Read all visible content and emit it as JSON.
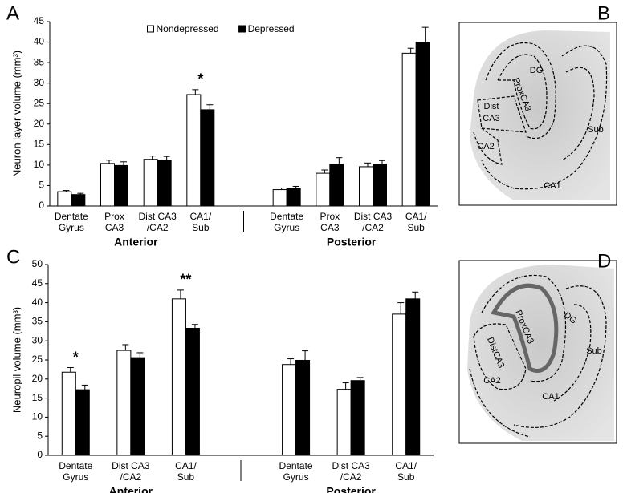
{
  "chart_data": [
    {
      "type": "bar",
      "panel_label": "A",
      "y_label": "Neuron layer volume (mm³)",
      "categories": [
        [
          "Dentate",
          "Gyrus"
        ],
        [
          "Prox",
          "CA3"
        ],
        [
          "Dist CA3",
          "/CA2"
        ],
        [
          "CA1/",
          "Sub"
        ],
        null,
        [
          "Dentate",
          "Gyrus"
        ],
        [
          "Prox",
          "CA3"
        ],
        [
          "Dist CA3",
          "/CA2"
        ],
        [
          "CA1/",
          "Sub"
        ]
      ],
      "group_labels": [
        "Anterior",
        "Posterior"
      ],
      "series": [
        {
          "name": "Nondepressed",
          "color": "#ffffff",
          "values": [
            3.5,
            10.4,
            11.4,
            27.2,
            null,
            4.0,
            8.0,
            9.6,
            37.3
          ],
          "errors": [
            0.3,
            0.8,
            0.8,
            1.2,
            null,
            0.4,
            0.8,
            0.9,
            1.2
          ]
        },
        {
          "name": "Depressed",
          "color": "#000000",
          "values": [
            2.8,
            9.9,
            11.2,
            23.5,
            null,
            4.3,
            10.2,
            10.2,
            40.0
          ],
          "errors": [
            0.3,
            0.9,
            0.9,
            1.2,
            null,
            0.5,
            1.6,
            0.9,
            3.6
          ]
        }
      ],
      "significance": [
        null,
        null,
        null,
        "*",
        null,
        null,
        null,
        null,
        null
      ],
      "ylim": [
        0,
        45
      ],
      "yticks": [
        0,
        5,
        10,
        15,
        20,
        25,
        30,
        35,
        40,
        45
      ],
      "legend": "top"
    },
    {
      "type": "bar",
      "panel_label": "C",
      "y_label": "Neuropil volume (mm³)",
      "categories": [
        [
          "Dentate",
          "Gyrus"
        ],
        [
          "Dist CA3",
          "/CA2"
        ],
        [
          "CA1/",
          "Sub"
        ],
        null,
        [
          "Dentate",
          "Gyrus"
        ],
        [
          "Dist CA3",
          "/CA2"
        ],
        [
          "CA1/",
          "Sub"
        ]
      ],
      "group_labels": [
        "Anterior",
        "Posterior"
      ],
      "series": [
        {
          "color": "#ffffff",
          "values": [
            21.8,
            27.5,
            41.0,
            null,
            23.8,
            17.3,
            37.0
          ],
          "errors": [
            1.2,
            1.5,
            2.3,
            null,
            1.5,
            1.7,
            3.0
          ]
        },
        {
          "color": "#000000",
          "values": [
            17.2,
            25.6,
            33.3,
            null,
            24.9,
            19.6,
            41.0
          ],
          "errors": [
            1.2,
            1.3,
            1.0,
            null,
            2.5,
            0.8,
            1.8
          ]
        }
      ],
      "significance": [
        "*",
        null,
        "**",
        null,
        null,
        null,
        null
      ],
      "ylim": [
        0,
        50
      ],
      "yticks": [
        0,
        5,
        10,
        15,
        20,
        25,
        30,
        35,
        40,
        45,
        50
      ],
      "legend": "none"
    }
  ],
  "images": [
    {
      "panel_label": "B",
      "labels": [
        "DG",
        "ProxCA3",
        "Dist",
        "CA3",
        "CA2",
        "Sub",
        "CA1"
      ]
    },
    {
      "panel_label": "D",
      "labels": [
        "DG",
        "ProxCA3",
        "DistCA3",
        "CA2",
        "Sub",
        "CA1"
      ]
    }
  ]
}
